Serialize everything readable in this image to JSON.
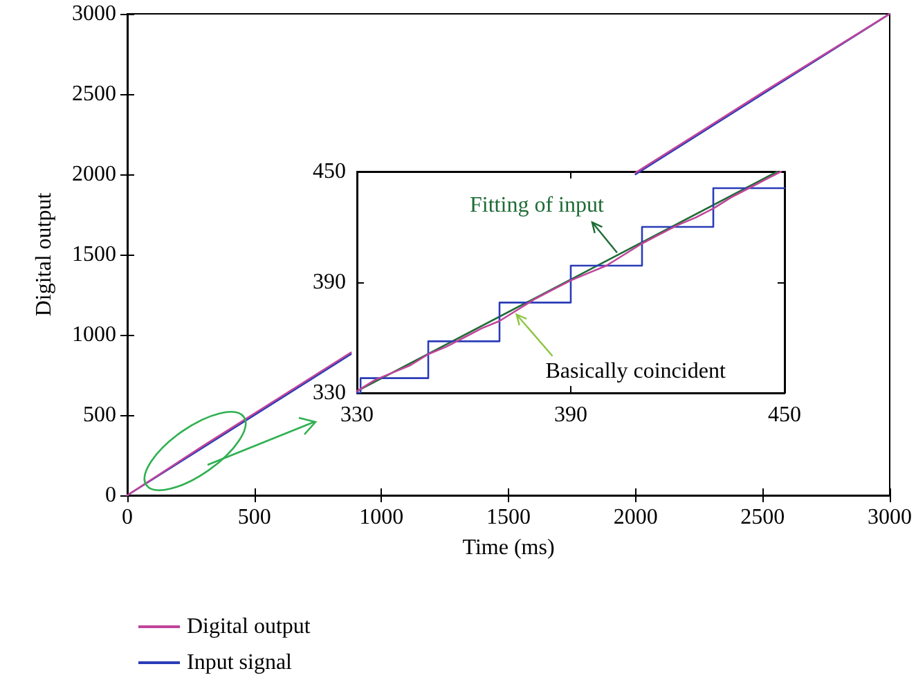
{
  "chart_data": [
    {
      "type": "line",
      "xlabel": "Time (ms)",
      "ylabel": "Digital output",
      "xlim": [
        0,
        3000
      ],
      "ylim": [
        0,
        3000
      ],
      "xticks": [
        0,
        500,
        1000,
        1500,
        2000,
        2500,
        3000
      ],
      "yticks": [
        0,
        500,
        1000,
        1500,
        2000,
        2500,
        3000
      ],
      "legend": "bottom left",
      "series": [
        {
          "name": "Digital output",
          "color": "#c0449a",
          "x": [
            0,
            300,
            600,
            880,
            1000,
            1500,
            2000,
            2500,
            3000
          ],
          "values": [
            0,
            310,
            610,
            890,
            null,
            null,
            2010,
            2510,
            3000
          ]
        },
        {
          "name": "Input signal",
          "color": "#2a3cb8",
          "x": [
            0,
            300,
            600,
            880,
            1000,
            1500,
            2000,
            2500,
            3000
          ],
          "values": [
            0,
            300,
            600,
            880,
            null,
            null,
            2000,
            2500,
            3000
          ]
        }
      ]
    },
    {
      "type": "line",
      "xlim": [
        330,
        450
      ],
      "ylim": [
        330,
        450
      ],
      "xticks": [
        330,
        390,
        450
      ],
      "yticks": [
        330,
        390,
        450
      ],
      "annotations": [
        {
          "text": "Fitting of input",
          "x": 403,
          "y": 406
        },
        {
          "text": "Basically coincident",
          "x": 374,
          "y": 374
        }
      ],
      "series": [
        {
          "color": "#c0449a",
          "x": [
            330,
            335,
            340,
            345,
            350,
            355,
            360,
            365,
            370,
            375,
            380,
            385,
            390,
            395,
            400,
            405,
            410,
            415,
            420,
            425,
            430,
            435,
            440,
            445,
            449
          ],
          "values": [
            331,
            337,
            341,
            345,
            351,
            355,
            360,
            365,
            369,
            375,
            381,
            386,
            391,
            395,
            399,
            405,
            411,
            416,
            421,
            425,
            430,
            436,
            441,
            446,
            450
          ]
        },
        {
          "type": "step",
          "color": "#2a3cb8",
          "x": [
            330,
            331,
            350,
            370,
            390,
            410,
            430,
            450
          ],
          "values": [
            330,
            338,
            358,
            379,
            399,
            420,
            441,
            441
          ]
        },
        {
          "color": "#1e6b35",
          "x": [
            330,
            448
          ],
          "values": [
            331,
            450
          ]
        }
      ]
    }
  ]
}
